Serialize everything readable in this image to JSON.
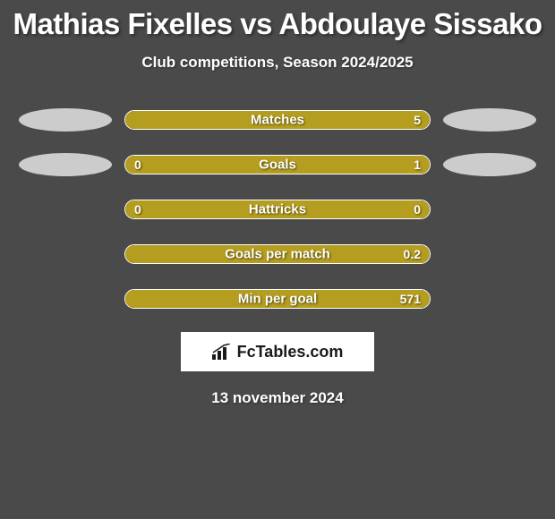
{
  "title": "Mathias Fixelles vs Abdoulaye Sissako",
  "subtitle": "Club competitions, Season 2024/2025",
  "date": "13 november 2024",
  "badge_text": "FcTables.com",
  "colors": {
    "background": "#4a4a4a",
    "text": "#ffffff",
    "player1": "#b59e1f",
    "player2": "#cccccc",
    "bar_border": "#ffffff",
    "badge_bg": "#ffffff",
    "badge_text": "#1a1a1a"
  },
  "stats": [
    {
      "label": "Matches",
      "left_value": "",
      "right_value": "5",
      "left_pct": 0,
      "right_pct": 100,
      "fill_color": "#b59e1f",
      "show_left_ellipse": true,
      "show_right_ellipse": true,
      "left_ellipse_color": "#cccccc",
      "right_ellipse_color": "#cccccc"
    },
    {
      "label": "Goals",
      "left_value": "0",
      "right_value": "1",
      "left_pct": 18,
      "right_pct": 82,
      "fill_color": "#b59e1f",
      "show_left_ellipse": true,
      "show_right_ellipse": true,
      "left_ellipse_color": "#cccccc",
      "right_ellipse_color": "#cccccc"
    },
    {
      "label": "Hattricks",
      "left_value": "0",
      "right_value": "0",
      "left_pct": 100,
      "right_pct": 0,
      "fill_color": "#b59e1f",
      "show_left_ellipse": false,
      "show_right_ellipse": false
    },
    {
      "label": "Goals per match",
      "left_value": "",
      "right_value": "0.2",
      "left_pct": 0,
      "right_pct": 100,
      "fill_color": "#b59e1f",
      "show_left_ellipse": false,
      "show_right_ellipse": false
    },
    {
      "label": "Min per goal",
      "left_value": "",
      "right_value": "571",
      "left_pct": 0,
      "right_pct": 100,
      "fill_color": "#b59e1f",
      "show_left_ellipse": false,
      "show_right_ellipse": false
    }
  ]
}
